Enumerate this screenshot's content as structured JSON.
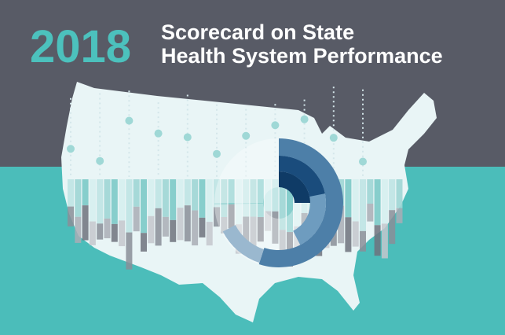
{
  "header": {
    "year": "2018",
    "title_lines": [
      "Scorecard on State",
      "Health System Performance"
    ]
  }
}
